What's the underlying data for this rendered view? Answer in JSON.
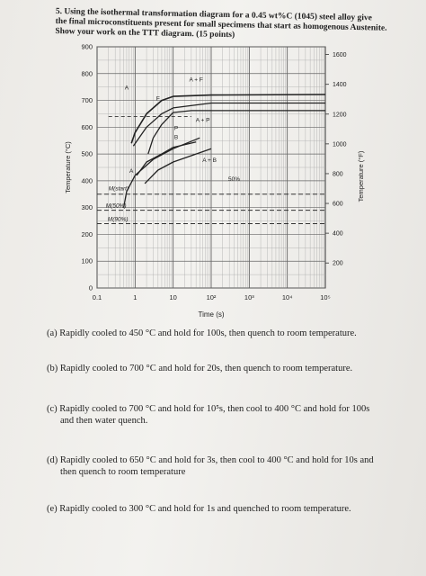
{
  "question": {
    "lines": [
      "5. Using the isothermal transformation diagram for a 0.45 wt%C (1045) steel alloy give",
      "the final microconstituents present for small specimens that start as homogenous Austenite.",
      "Show your work on the TTT diagram. (15 points)"
    ]
  },
  "chart_data": {
    "type": "line",
    "xlabel": "Time (s)",
    "ylabel_left": "Temperature (°C)",
    "ylabel_right": "Temperature (°F)",
    "x_scale": "log",
    "xlim": [
      0.1,
      100000
    ],
    "ylim": [
      0,
      900
    ],
    "x_ticks": [
      "0.1",
      "1",
      "10",
      "10²",
      "10³",
      "10⁴",
      "10⁵"
    ],
    "y_ticks_left": [
      "0",
      "100",
      "200",
      "300",
      "400",
      "500",
      "600",
      "700",
      "800",
      "900"
    ],
    "y_ticks_right": [
      "200",
      "400",
      "600",
      "800",
      "1000",
      "1200",
      "1400",
      "1600"
    ],
    "region_labels": [
      "A",
      "A + F",
      "F",
      "A + P",
      "P",
      "B",
      "A + B",
      "A",
      "50%"
    ],
    "martensite_labels": [
      "M(start)",
      "M(50%)",
      "M(90%)"
    ],
    "curves": [
      {
        "t": [
          0.8,
          1,
          2,
          5,
          10,
          100,
          100000
        ],
        "T": [
          540,
          580,
          650,
          700,
          715,
          720,
          722
        ]
      },
      {
        "t": [
          0.9,
          2,
          5,
          10,
          100,
          100000
        ],
        "T": [
          530,
          600,
          650,
          672,
          690,
          690
        ]
      },
      {
        "t": [
          2.2,
          3,
          5,
          10,
          30,
          100000
        ],
        "T": [
          500,
          560,
          610,
          655,
          662,
          662
        ]
      },
      {
        "t": [
          0.5,
          0.6,
          1,
          3,
          10,
          50
        ],
        "T": [
          300,
          360,
          420,
          480,
          520,
          560
        ]
      },
      {
        "t": [
          1.1,
          2,
          5,
          10,
          40
        ],
        "T": [
          420,
          470,
          500,
          525,
          545
        ]
      },
      {
        "t": [
          1.8,
          4,
          10,
          40,
          100
        ],
        "T": [
          390,
          440,
          470,
          500,
          520
        ]
      }
    ],
    "lines": [
      {
        "label": "M(start)",
        "T": 350
      },
      {
        "label": "M(50%)",
        "T": 290
      },
      {
        "label": "M(90%)",
        "T": 240
      }
    ]
  },
  "parts": [
    {
      "letter": "a",
      "lines": [
        "(a) Rapidly cooled to 450 °C and hold for 100s, then quench to room temperature."
      ]
    },
    {
      "letter": "b",
      "lines": [
        "(b) Rapidly cooled to 700 °C and hold for 20s, then quench to room temperature."
      ]
    },
    {
      "letter": "c",
      "lines": [
        "(c) Rapidly cooled to 700 °C and hold for 10⁵s, then cool to 400 °C and hold for 100s",
        "and then water quench."
      ]
    },
    {
      "letter": "d",
      "lines": [
        "(d) Rapidly cooled to 650 °C and hold for 3s, then cool to 400 °C and hold for 10s and",
        "then quench to room temperature"
      ]
    },
    {
      "letter": "e",
      "lines": [
        "(e) Rapidly cooled to 300 °C and hold for 1s and quenched to room temperature."
      ]
    }
  ]
}
